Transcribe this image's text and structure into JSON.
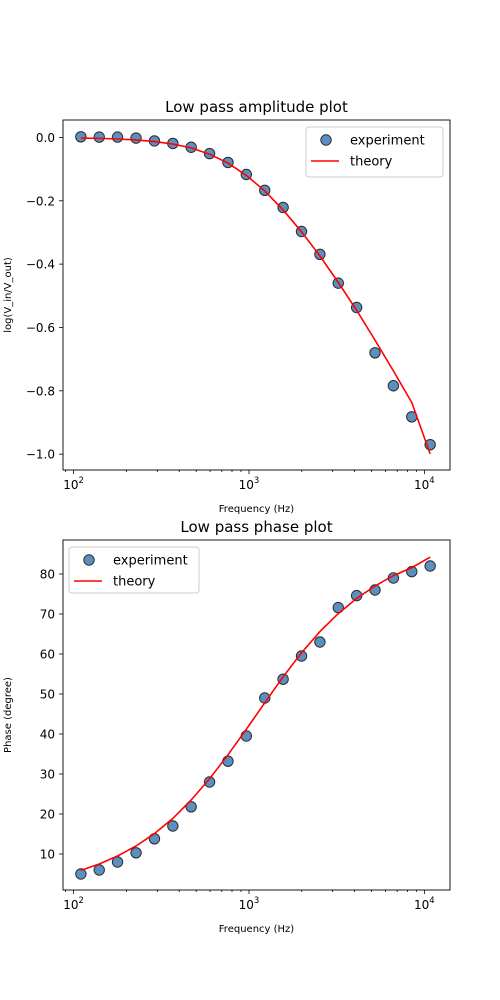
{
  "colors": {
    "experiment_fill": "#5b8fbf",
    "experiment_edge": "#2b2b2b",
    "theory_line": "#ff0000",
    "axes": "#000000",
    "background": "#ffffff"
  },
  "chart_data": [
    {
      "type": "scatter",
      "title": "Low pass amplitude plot",
      "xlabel": "Frequency (Hz)",
      "ylabel": "log(V_in/V_out)",
      "xscale": "log",
      "xlim": [
        87,
        14000
      ],
      "ylim": [
        -1.05,
        0.055
      ],
      "xticks": [
        {
          "value": 100,
          "base": "10",
          "exp": "2"
        },
        {
          "value": 1000,
          "base": "10",
          "exp": "3"
        },
        {
          "value": 10000,
          "base": "10",
          "exp": "4"
        }
      ],
      "yticks": [
        {
          "value": 0.0,
          "label": "0.0"
        },
        {
          "value": -0.2,
          "label": "−0.2"
        },
        {
          "value": -0.4,
          "label": "−0.4"
        },
        {
          "value": -0.6,
          "label": "−0.6"
        },
        {
          "value": -0.8,
          "label": "−0.8"
        },
        {
          "value": -1.0,
          "label": "−1.0"
        }
      ],
      "legend": {
        "position": "upper right",
        "items": [
          "experiment",
          "theory"
        ]
      },
      "grid": false,
      "series": [
        {
          "name": "experiment",
          "kind": "scatter",
          "x": [
            110,
            140,
            178,
            227,
            289,
            368,
            468,
            596,
            759,
            966,
            1230,
            1565,
            1993,
            2537,
            3229,
            4110,
            5231,
            6659,
            8476,
            10790
          ],
          "y": [
            0.002,
            0.001,
            0.001,
            -0.002,
            -0.011,
            -0.019,
            -0.031,
            -0.051,
            -0.079,
            -0.117,
            -0.167,
            -0.221,
            -0.297,
            -0.369,
            -0.46,
            -0.537,
            -0.68,
            -0.784,
            -0.882,
            -0.97
          ]
        },
        {
          "name": "theory",
          "kind": "line",
          "x": [
            110,
            140,
            178,
            227,
            289,
            368,
            468,
            596,
            759,
            966,
            1230,
            1565,
            1993,
            2537,
            3229,
            4110,
            5231,
            6659,
            8476,
            10790
          ],
          "y": [
            -0.002,
            -0.003,
            -0.005,
            -0.008,
            -0.013,
            -0.021,
            -0.033,
            -0.053,
            -0.081,
            -0.12,
            -0.169,
            -0.229,
            -0.298,
            -0.374,
            -0.458,
            -0.546,
            -0.64,
            -0.737,
            -0.837,
            -0.999
          ]
        }
      ]
    },
    {
      "type": "scatter",
      "title": "Low pass phase plot",
      "xlabel": "Frequency (Hz)",
      "ylabel": "Phase (degree)",
      "xscale": "log",
      "xlim": [
        87,
        14000
      ],
      "ylim": [
        1,
        88.5
      ],
      "xticks": [
        {
          "value": 100,
          "base": "10",
          "exp": "2"
        },
        {
          "value": 1000,
          "base": "10",
          "exp": "3"
        },
        {
          "value": 10000,
          "base": "10",
          "exp": "4"
        }
      ],
      "yticks": [
        {
          "value": 10,
          "label": "10"
        },
        {
          "value": 20,
          "label": "20"
        },
        {
          "value": 30,
          "label": "30"
        },
        {
          "value": 40,
          "label": "40"
        },
        {
          "value": 50,
          "label": "50"
        },
        {
          "value": 60,
          "label": "60"
        },
        {
          "value": 70,
          "label": "70"
        },
        {
          "value": 80,
          "label": "80"
        }
      ],
      "legend": {
        "position": "upper left",
        "items": [
          "experiment",
          "theory"
        ]
      },
      "grid": false,
      "series": [
        {
          "name": "experiment",
          "kind": "scatter",
          "x": [
            110,
            140,
            178,
            227,
            289,
            368,
            468,
            596,
            759,
            966,
            1230,
            1565,
            1993,
            2537,
            3229,
            4110,
            5231,
            6659,
            8476,
            10790
          ],
          "y": [
            5,
            6,
            8,
            10.3,
            13.8,
            17,
            21.8,
            28,
            33.2,
            39.5,
            49,
            53.7,
            59.5,
            63,
            71.6,
            74.6,
            76,
            79,
            80.6,
            82
          ]
        },
        {
          "name": "theory",
          "kind": "line",
          "x": [
            110,
            140,
            178,
            227,
            289,
            368,
            468,
            596,
            759,
            966,
            1230,
            1565,
            1993,
            2537,
            3229,
            4110,
            5231,
            6659,
            8476,
            10790
          ],
          "y": [
            5.9,
            7.5,
            9.5,
            12,
            15.1,
            18.9,
            23.5,
            28.8,
            34.8,
            41.2,
            47.8,
            54.3,
            60.3,
            65.6,
            70.1,
            73.9,
            77,
            79.6,
            81.6,
            84.2
          ]
        }
      ]
    }
  ]
}
